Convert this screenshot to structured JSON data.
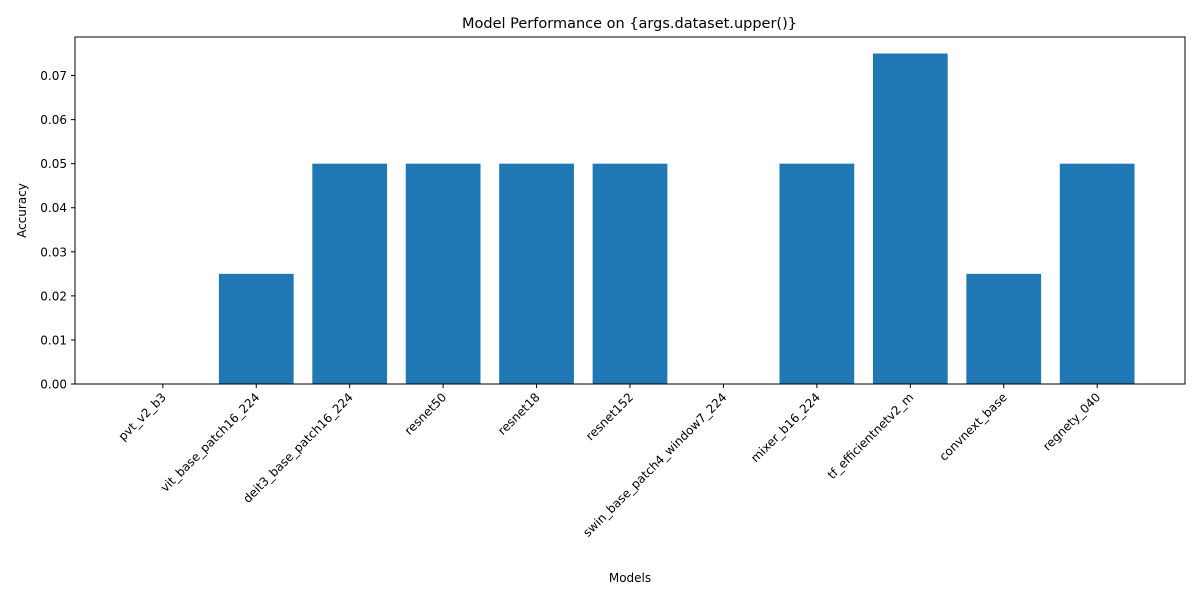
{
  "chart_data": {
    "type": "bar",
    "title": "Model Performance on {args.dataset.upper()}",
    "xlabel": "Models",
    "ylabel": "Accuracy",
    "categories": [
      "pvt_v2_b3",
      "vit_base_patch16_224",
      "deit3_base_patch16_224",
      "resnet50",
      "resnet18",
      "resnet152",
      "swin_base_patch4_window7_224",
      "mixer_b16_224",
      "tf_efficientnetv2_m",
      "convnext_base",
      "regnety_040"
    ],
    "values": [
      0.0,
      0.025,
      0.05,
      0.05,
      0.05,
      0.05,
      0.0,
      0.05,
      0.075,
      0.025,
      0.05
    ],
    "ylim": [
      0,
      0.07875
    ],
    "yticks": [
      "0.00",
      "0.01",
      "0.02",
      "0.03",
      "0.04",
      "0.05",
      "0.06",
      "0.07"
    ],
    "grid": false,
    "bar_color": "#1f77b4"
  }
}
